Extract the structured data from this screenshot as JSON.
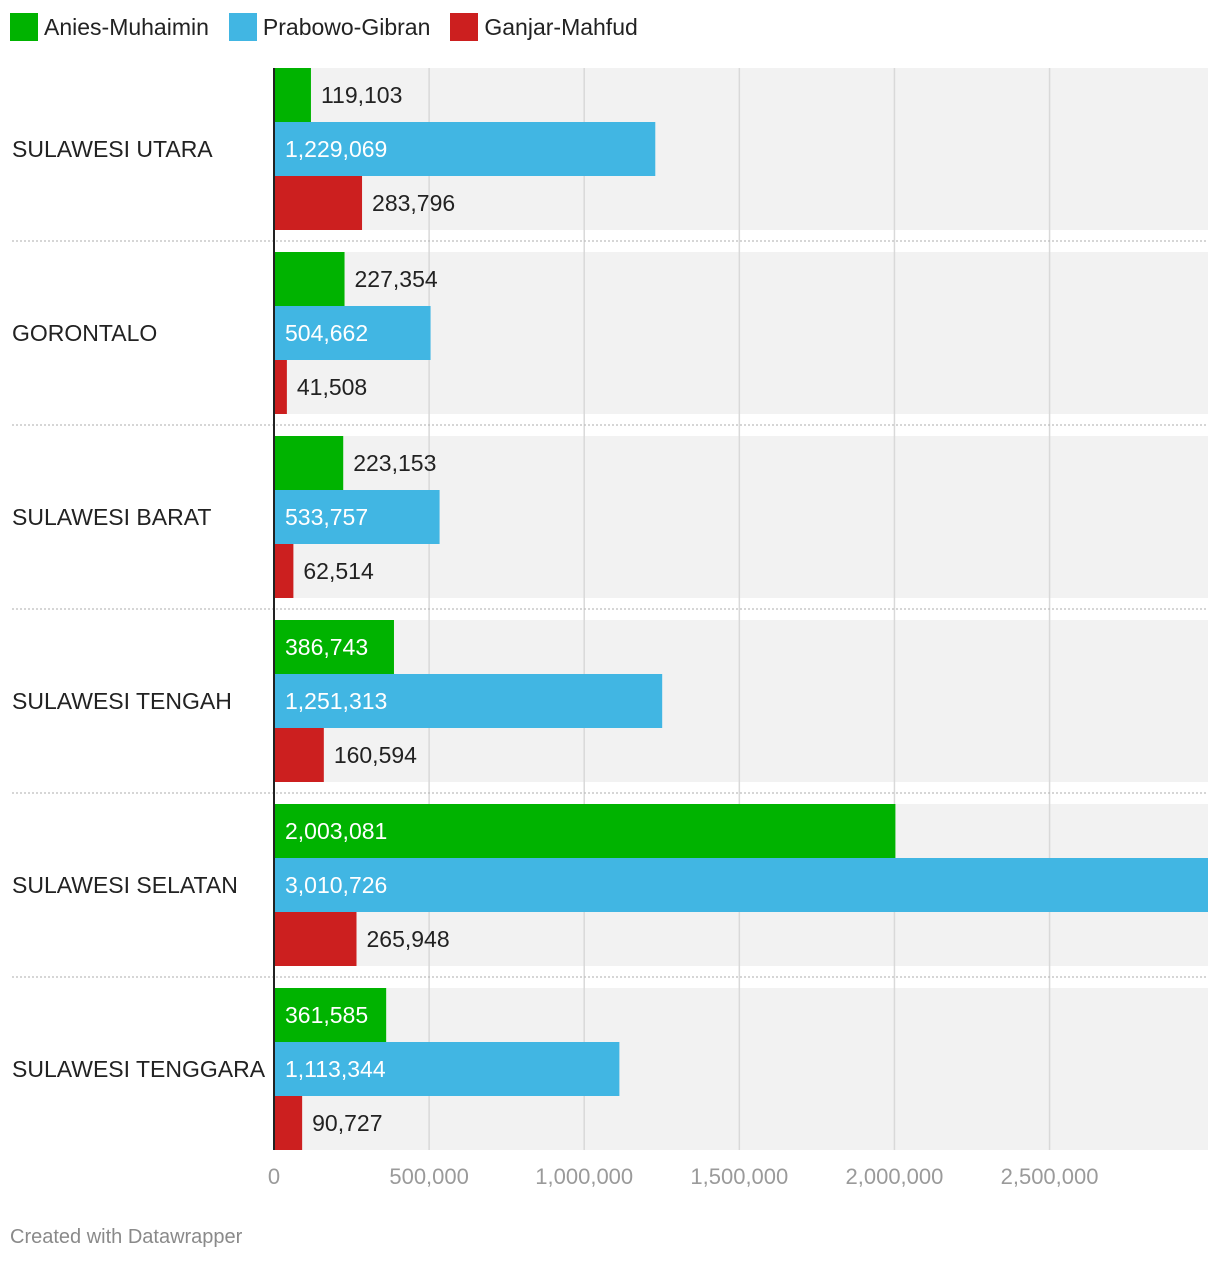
{
  "chart_data": {
    "type": "bar",
    "orientation": "horizontal",
    "categories": [
      "SULAWESI UTARA",
      "GORONTALO",
      "SULAWESI BARAT",
      "SULAWESI TENGAH",
      "SULAWESI SELATAN",
      "SULAWESI TENGGARA"
    ],
    "series": [
      {
        "name": "Anies-Muhaimin",
        "color": "#00b300",
        "values": [
          119103,
          227354,
          223153,
          386743,
          2003081,
          361585
        ],
        "labels": [
          "119,103",
          "227,354",
          "223,153",
          "386,743",
          "2,003,081",
          "361,585"
        ]
      },
      {
        "name": "Prabowo-Gibran",
        "color": "#41b6e3",
        "values": [
          1229069,
          504662,
          533757,
          1251313,
          3010726,
          1113344
        ],
        "labels": [
          "1,229,069",
          "504,662",
          "533,757",
          "1,251,313",
          "3,010,726",
          "1,113,344"
        ]
      },
      {
        "name": "Ganjar-Mahfud",
        "color": "#cc1f1f",
        "values": [
          283796,
          41508,
          62514,
          160594,
          265948,
          90727
        ],
        "labels": [
          "283,796",
          "41,508",
          "62,514",
          "160,594",
          "265,948",
          "90,727"
        ]
      }
    ],
    "xlim": [
      0,
      3010726
    ],
    "xticks": [
      0,
      500000,
      1000000,
      1500000,
      2000000,
      2500000
    ],
    "xtick_labels": [
      "0",
      "500,000",
      "1,000,000",
      "1,500,000",
      "2,000,000",
      "2,500,000"
    ],
    "grid": true,
    "legend": "top-left",
    "title": "",
    "xlabel": "",
    "ylabel": ""
  },
  "footer": {
    "credit": "Created with Datawrapper"
  }
}
